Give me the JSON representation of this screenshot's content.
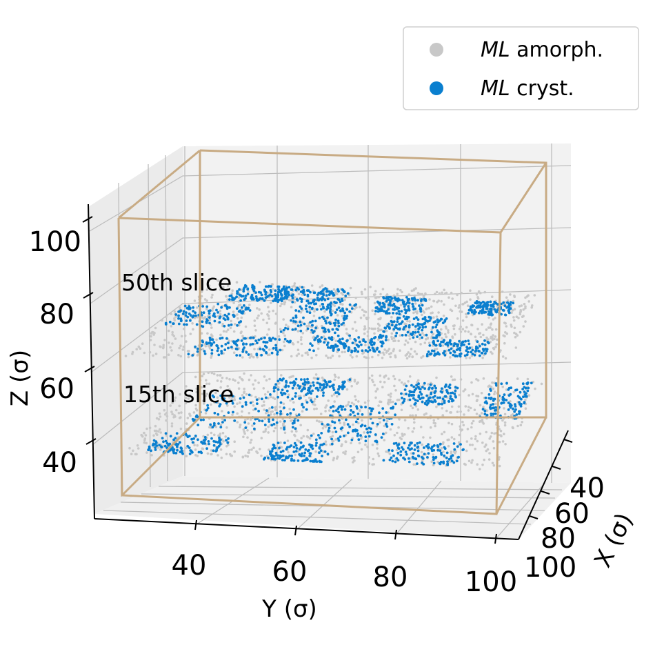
{
  "chart_data": {
    "type": "scatter",
    "projection": "3d",
    "xlabel": "X (σ)",
    "ylabel": "Y (σ)",
    "zlabel": "Z (σ)",
    "xticks": [
      "40",
      "60",
      "80",
      "100"
    ],
    "yticks": [
      "40",
      "60",
      "80",
      "100"
    ],
    "zticks": [
      "40",
      "60",
      "80",
      "100"
    ],
    "grid": true,
    "legend": {
      "placement": "top-right",
      "entries": [
        {
          "italic": "ML",
          "rest": " amorph.",
          "color": "#c8c8c8"
        },
        {
          "italic": "ML",
          "rest": " cryst.",
          "color": "#0a7fcf"
        }
      ]
    },
    "annotations": [
      "50th slice",
      "15th slice"
    ],
    "series": [
      {
        "name": "ML amorph.",
        "color": "#c8c8c8"
      },
      {
        "name": "ML cryst.",
        "color": "#0a7fcf"
      }
    ],
    "slices": [
      {
        "label": "50th slice",
        "z": 80
      },
      {
        "label": "15th slice",
        "z": 52
      }
    ],
    "box_color": "#c8ab84"
  }
}
